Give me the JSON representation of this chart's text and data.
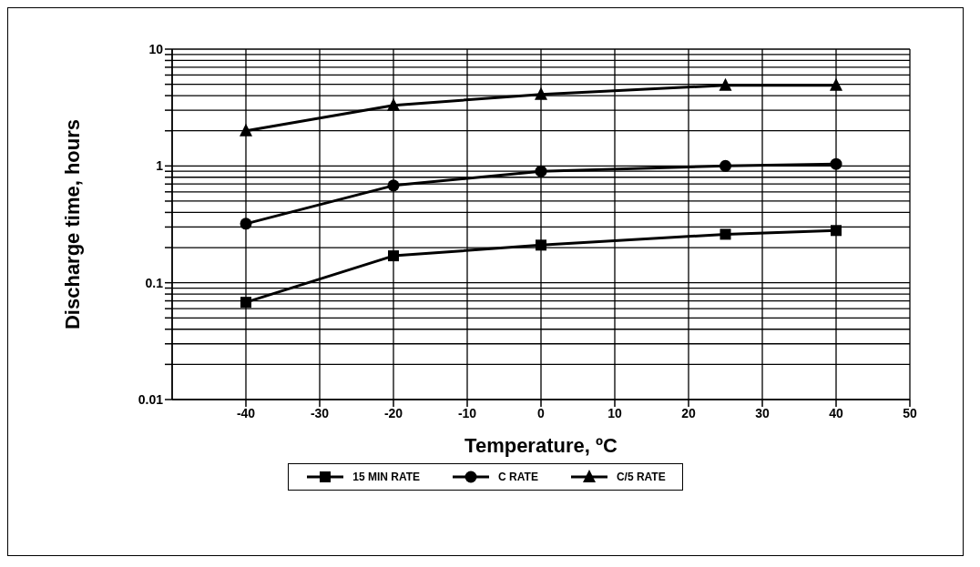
{
  "chart_data": {
    "type": "line",
    "xlabel": "Temperature, ºC",
    "ylabel": "Discharge time, hours",
    "x": [
      -40,
      -20,
      0,
      25,
      40
    ],
    "series": [
      {
        "name": "15 MIN RATE",
        "color": "#000000",
        "marker": "square",
        "values": [
          0.068,
          0.17,
          0.21,
          0.26,
          0.28
        ]
      },
      {
        "name": "C RATE",
        "color": "#000000",
        "marker": "circle",
        "values": [
          0.32,
          0.68,
          0.9,
          1.0,
          1.04
        ]
      },
      {
        "name": "C/5 RATE",
        "color": "#000000",
        "marker": "triangle",
        "values": [
          2.0,
          3.3,
          4.1,
          4.9,
          4.9
        ]
      }
    ],
    "xlim": [
      -50,
      50
    ],
    "xticks": [
      -40,
      -30,
      -20,
      -10,
      0,
      10,
      20,
      30,
      40,
      50
    ],
    "ylim": [
      0.01,
      10
    ],
    "yticks": [
      0.01,
      {
        "value": 0.02,
        "label": null
      },
      {
        "value": 0.03,
        "label": null
      },
      {
        "value": 0.04,
        "label": null
      },
      {
        "value": 0.05,
        "label": null
      },
      {
        "value": 0.06,
        "label": null
      },
      {
        "value": 0.07,
        "label": null
      },
      {
        "value": 0.08,
        "label": null
      },
      {
        "value": 0.09,
        "label": null
      },
      0.1,
      {
        "value": 0.2,
        "label": null
      },
      {
        "value": 0.3,
        "label": null
      },
      {
        "value": 0.4,
        "label": null
      },
      {
        "value": 0.5,
        "label": null
      },
      {
        "value": 0.6,
        "label": null
      },
      {
        "value": 0.7,
        "label": null
      },
      {
        "value": 0.8,
        "label": null
      },
      {
        "value": 0.9,
        "label": null
      },
      1,
      {
        "value": 2,
        "label": null
      },
      {
        "value": 3,
        "label": null
      },
      {
        "value": 4,
        "label": null
      },
      {
        "value": 5,
        "label": null
      },
      {
        "value": 6,
        "label": null
      },
      {
        "value": 7,
        "label": null
      },
      {
        "value": 8,
        "label": null
      },
      {
        "value": 9,
        "label": null
      },
      10
    ],
    "log": "y",
    "grid": true,
    "legend": "bottom",
    "line_style": "solid"
  }
}
